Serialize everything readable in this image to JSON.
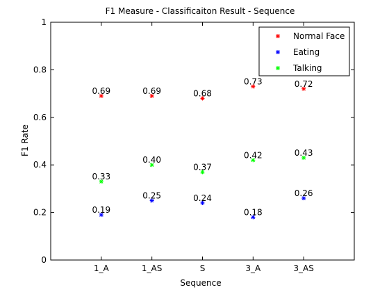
{
  "chart_data": {
    "type": "scatter",
    "title": "F1 Measure - Classificaiton Result - Sequence",
    "xlabel": "Sequence",
    "ylabel": "F1 Rate",
    "categories": [
      "1_A",
      "1_AS",
      "S",
      "3_A",
      "3_AS"
    ],
    "ylim": [
      0,
      1
    ],
    "yticks": [
      0,
      0.2,
      0.4,
      0.6,
      0.8,
      1
    ],
    "ytick_labels": [
      "0",
      "0.2",
      "0.4",
      "0.6",
      "0.8",
      "1"
    ],
    "marker": "*",
    "grid": false,
    "legend_position": "top-right",
    "series": [
      {
        "name": "Normal Face",
        "color": "#ff0000",
        "values": [
          0.69,
          0.69,
          0.68,
          0.73,
          0.72
        ],
        "labels": [
          "0.69",
          "0.69",
          "0.68",
          "0.73",
          "0.72"
        ]
      },
      {
        "name": "Eating",
        "color": "#0000ff",
        "values": [
          0.19,
          0.25,
          0.24,
          0.18,
          0.26
        ],
        "labels": [
          "0.19",
          "0.25",
          "0.24",
          "0.18",
          "0.26"
        ]
      },
      {
        "name": "Talking",
        "color": "#00ff00",
        "values": [
          0.33,
          0.4,
          0.37,
          0.42,
          0.43
        ],
        "labels": [
          "0.33",
          "0.40",
          "0.37",
          "0.42",
          "0.43"
        ]
      }
    ]
  }
}
